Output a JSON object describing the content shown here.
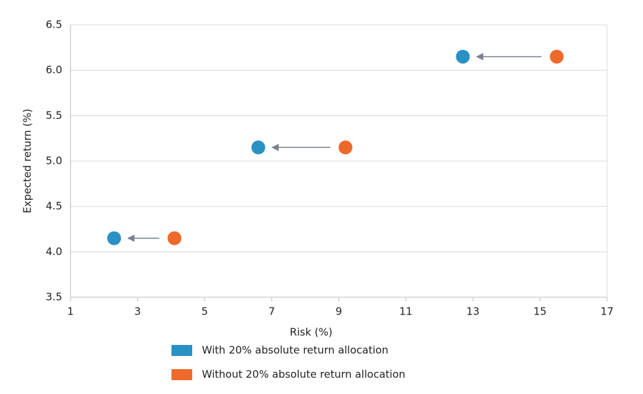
{
  "chart_data": {
    "type": "scatter",
    "x_label": "Risk (%)",
    "y_label": "Expected return (%)",
    "xlim": [
      1,
      17
    ],
    "xticks": [
      1,
      3,
      5,
      7,
      9,
      11,
      13,
      15,
      17
    ],
    "ylim": [
      3.5,
      6.5
    ],
    "yticks": [
      3.5,
      {
        "value": 4,
        "label": "4.0"
      },
      4.5,
      {
        "value": 5,
        "label": "5.0"
      },
      5.5,
      {
        "value": 6,
        "label": "6.0"
      },
      6.5
    ],
    "grid": true,
    "series": [
      {
        "name": "With 20% absolute return allocation",
        "color": "#2a91c5",
        "x": [
          2.3,
          6.6,
          12.7
        ],
        "values": [
          4.15,
          5.15,
          6.15
        ]
      },
      {
        "name": "Without 20% absolute return allocation",
        "color": "#ee6a2b",
        "x": [
          4.1,
          9.2,
          15.5
        ],
        "values": [
          4.15,
          5.15,
          6.15
        ]
      }
    ]
  }
}
